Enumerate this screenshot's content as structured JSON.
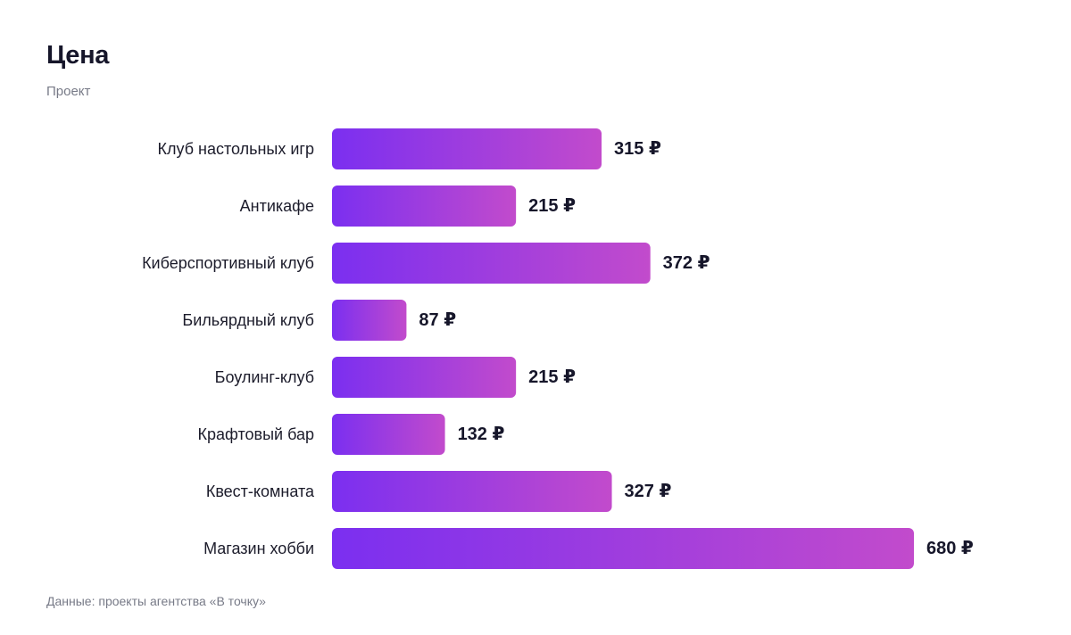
{
  "chart_data": {
    "type": "bar",
    "orientation": "horizontal",
    "title": "Цена",
    "subtitle": "Проект",
    "categories": [
      "Клуб настольных игр",
      "Антикафе",
      "Киберспортивный клуб",
      "Бильярдный клуб",
      "Боулинг-клуб",
      "Крафтовый бар",
      "Квест-комната",
      "Магазин хобби"
    ],
    "values": [
      315,
      215,
      372,
      87,
      215,
      132,
      327,
      680
    ],
    "value_suffix": " ₽",
    "xlim": [
      0,
      680
    ],
    "grid": false,
    "legend": "none",
    "bar_gradient": [
      "#7b2ff0",
      "#c24bcc"
    ],
    "footer": "Данные: проекты агентства «В точку»"
  }
}
